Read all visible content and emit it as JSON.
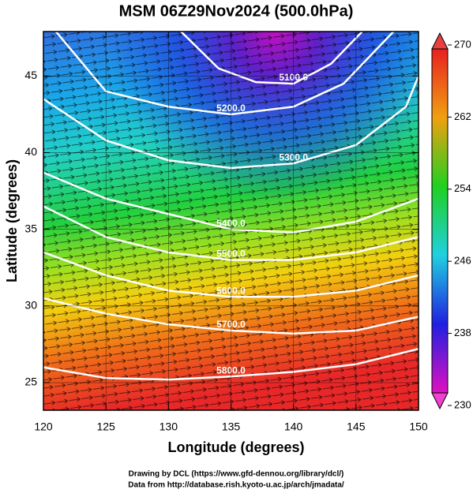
{
  "chart_data": {
    "type": "map",
    "title": "MSM 06Z29Nov2024 (500.0hPa)",
    "x_label": "Longitude (degrees)",
    "y_label": "Latitude  (degrees)",
    "xlim": [
      120,
      150
    ],
    "ylim": [
      23.2,
      47.9
    ],
    "xticks": [
      120,
      125,
      130,
      135,
      140,
      145,
      150
    ],
    "yticks": [
      25,
      30,
      35,
      40,
      45
    ],
    "colorbar": {
      "lim": [
        230,
        270
      ],
      "ticks": [
        230,
        238,
        246,
        254,
        262,
        270
      ]
    },
    "contours": [
      {
        "label": "5100.0",
        "lon": [
          131,
          134,
          137,
          140,
          143,
          145.5
        ],
        "lat": [
          47.9,
          45.5,
          44.6,
          44.5,
          45.8,
          47.9
        ]
      },
      {
        "label": "5200.0",
        "lon": [
          121,
          125,
          130,
          135,
          140,
          144,
          148
        ],
        "lat": [
          47.9,
          44,
          43,
          42.5,
          43,
          44.5,
          47.9
        ]
      },
      {
        "label": "5300.0",
        "lon": [
          120,
          125,
          130,
          135,
          140,
          145,
          149,
          150
        ],
        "lat": [
          43.5,
          40.8,
          39.5,
          39,
          39.3,
          40.5,
          43,
          45
        ]
      },
      {
        "label": "5400.0",
        "lon": [
          120,
          125,
          130,
          135,
          140,
          145,
          150
        ],
        "lat": [
          38.7,
          37,
          36,
          35,
          34.8,
          35.5,
          37
        ]
      },
      {
        "label": "5500.0",
        "lon": [
          120,
          125,
          130,
          135,
          140,
          145,
          150
        ],
        "lat": [
          36.5,
          34.5,
          33.5,
          33,
          33,
          33.5,
          34.5
        ]
      },
      {
        "label": "5600.0",
        "lon": [
          120,
          125,
          130,
          135,
          140,
          145,
          150
        ],
        "lat": [
          33.5,
          32,
          31,
          30.6,
          30.6,
          31,
          32
        ]
      },
      {
        "label": "5700.0",
        "lon": [
          120,
          125,
          130,
          135,
          140,
          145,
          150
        ],
        "lat": [
          30.5,
          29.5,
          28.8,
          28.4,
          28.2,
          28.4,
          29.3
        ]
      },
      {
        "label": "5800.0",
        "lon": [
          120,
          125,
          130,
          135,
          140,
          145,
          150
        ],
        "lat": [
          26,
          25.3,
          25.2,
          25.4,
          25.7,
          26.2,
          27.2
        ]
      }
    ],
    "credits": [
      "Drawing by DCL (https://www.gfd-dennou.org/library/dcl/)",
      "Data from http://database.rish.kyoto-u.ac.jp/arch/jmadata/"
    ]
  }
}
